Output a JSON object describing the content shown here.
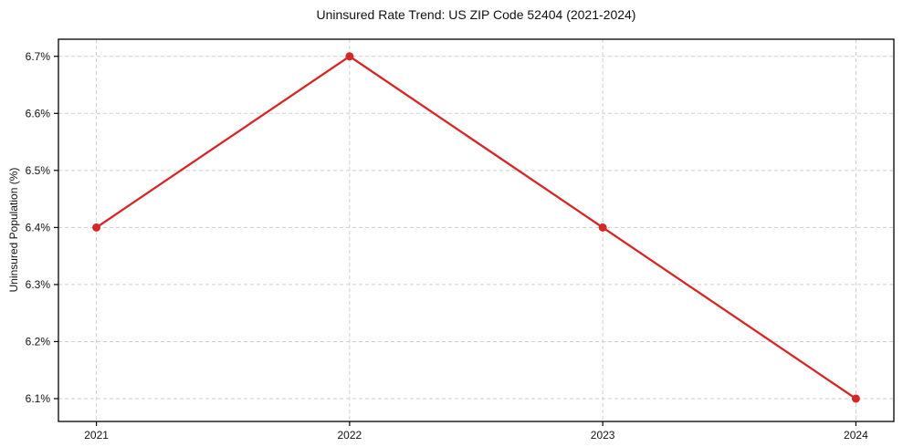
{
  "chart_data": {
    "type": "line",
    "title": "Uninsured Rate Trend: US ZIP Code 52404 (2021-2024)",
    "xlabel": "",
    "ylabel": "Uninsured Population (%)",
    "x": [
      2021,
      2022,
      2023,
      2024
    ],
    "xticklabels": [
      "2021",
      "2022",
      "2023",
      "2024"
    ],
    "values": [
      6.4,
      6.7,
      6.4,
      6.1
    ],
    "yticks": [
      6.1,
      6.2,
      6.3,
      6.4,
      6.5,
      6.6,
      6.7
    ],
    "yticklabels": [
      "6.1%",
      "6.2%",
      "6.3%",
      "6.4%",
      "6.5%",
      "6.6%",
      "6.7%"
    ],
    "xlim": [
      2020.85,
      2024.15
    ],
    "ylim": [
      6.06,
      6.73
    ],
    "grid": true,
    "legend": "none",
    "line_color": "#d62728",
    "grid_color": "#cfcfcf",
    "axis_color": "#000000",
    "marker": "circle"
  }
}
